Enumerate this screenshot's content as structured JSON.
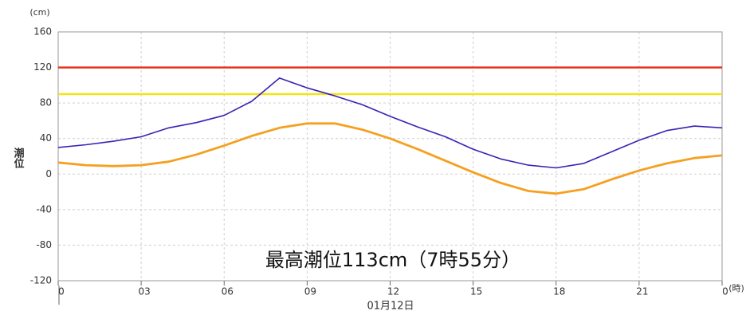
{
  "chart_data": {
    "type": "line",
    "y_unit": "(cm)",
    "x_unit": "(時)",
    "y_label": "潮位",
    "date_label": "01月12日",
    "annotation": "最高潮位113cm（7時55分）",
    "x": [
      0,
      1,
      2,
      3,
      4,
      5,
      6,
      7,
      8,
      9,
      10,
      11,
      12,
      13,
      14,
      15,
      16,
      17,
      18,
      19,
      20,
      21,
      22,
      23,
      24
    ],
    "series": [
      {
        "color": "#3a22b4",
        "values": [
          30,
          33,
          37,
          42,
          52,
          58,
          66,
          82,
          108,
          97,
          88,
          78,
          65,
          53,
          42,
          28,
          17,
          10,
          7,
          12,
          25,
          38,
          49,
          54,
          52
        ]
      },
      {
        "color": "#f5a020",
        "values": [
          13,
          10,
          9,
          10,
          14,
          22,
          32,
          43,
          52,
          57,
          57,
          50,
          40,
          28,
          15,
          2,
          -10,
          -19,
          -22,
          -17,
          -6,
          4,
          12,
          18,
          21
        ]
      }
    ],
    "reference_lines": [
      {
        "value": 120,
        "color": "#e8311a"
      },
      {
        "value": 90,
        "color": "#f2e41c"
      }
    ],
    "xlim": [
      0,
      24
    ],
    "xticks": [
      0,
      {
        "value": 3,
        "label": "03"
      },
      {
        "value": 6,
        "label": "06"
      },
      {
        "value": 9,
        "label": "09"
      },
      12,
      15,
      18,
      21,
      {
        "value": 24,
        "label": "0"
      }
    ],
    "ylim": [
      -120,
      160
    ],
    "yticks": [
      -120,
      -80,
      -40,
      0,
      40,
      80,
      120,
      160
    ],
    "grid": true
  }
}
